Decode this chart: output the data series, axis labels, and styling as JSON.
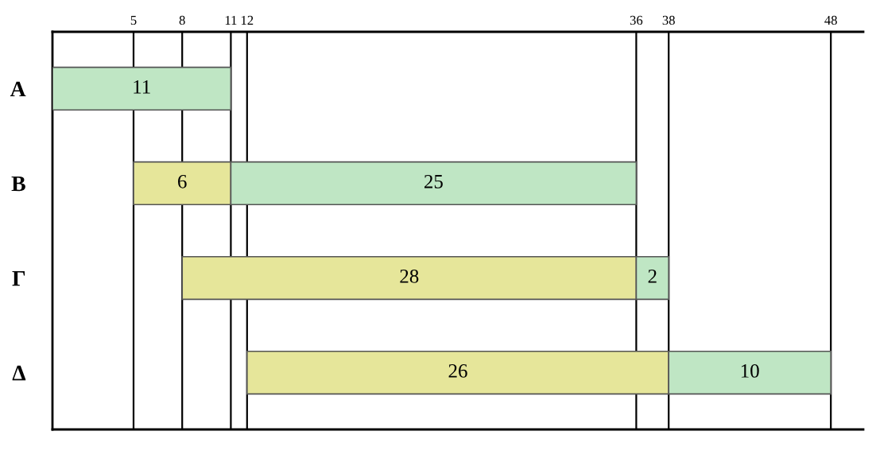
{
  "chart_data": {
    "type": "bar",
    "orientation": "horizontal",
    "categories": [
      "Α",
      "Β",
      "Γ",
      "Δ"
    ],
    "series": [
      {
        "color": "#e6e69a",
        "values": [
          null,
          6,
          28,
          26
        ],
        "base": [
          null,
          5,
          8,
          12
        ]
      },
      {
        "color": "#bfe6c4",
        "values": [
          11,
          25,
          2,
          10
        ],
        "base": [
          0,
          11,
          36,
          38
        ]
      }
    ],
    "xlim": [
      0,
      50
    ],
    "xticks": [
      5,
      8,
      11,
      12,
      36,
      38,
      48
    ],
    "grid": "x",
    "data_labels": true,
    "tick_labels": "xy"
  }
}
